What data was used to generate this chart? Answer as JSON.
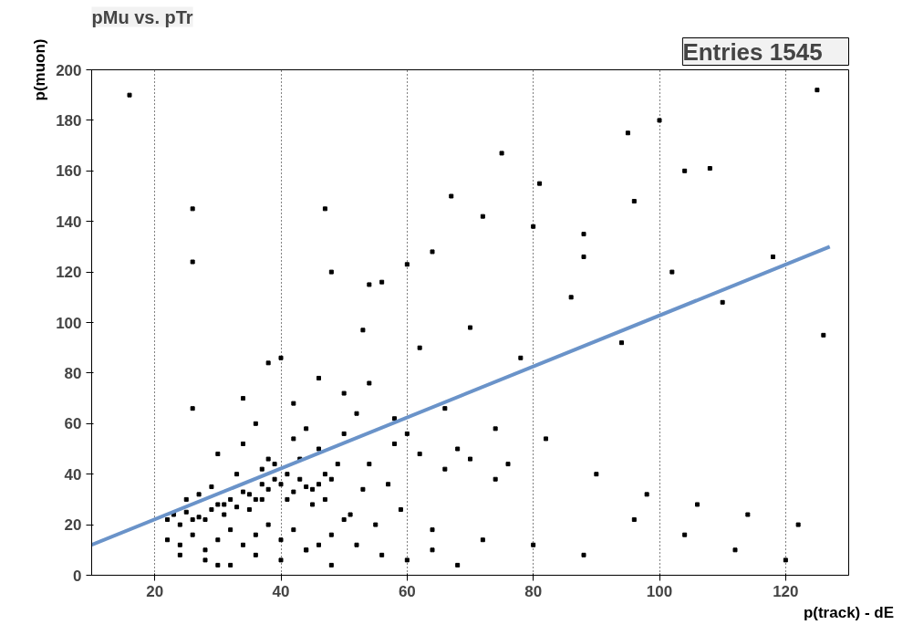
{
  "chart_data": {
    "type": "scatter",
    "title": "pMu vs. pTr",
    "xlabel": "p(track) - dE",
    "ylabel": "p(muon)",
    "annotations": [
      "Entries     1545"
    ],
    "xlim": [
      10,
      130
    ],
    "ylim": [
      0,
      200
    ],
    "xticks": [
      20,
      40,
      60,
      80,
      100,
      120
    ],
    "yticks": [
      0,
      20,
      40,
      60,
      80,
      100,
      120,
      140,
      160,
      180,
      200
    ],
    "grid": "x",
    "series": [
      {
        "color": "#000000",
        "marker": "square",
        "x": [
          22,
          23,
          24,
          25,
          26,
          27,
          28,
          29,
          30,
          31,
          32,
          33,
          34,
          35,
          36,
          37,
          38,
          39,
          40,
          41,
          42,
          43,
          44,
          45,
          46,
          47,
          48,
          22,
          24,
          26,
          28,
          30,
          32,
          34,
          36,
          38,
          40,
          42,
          44,
          46,
          48,
          50,
          25,
          27,
          29,
          31,
          33,
          35,
          37,
          39,
          41,
          43,
          45,
          47,
          49,
          51,
          53,
          55,
          57,
          59,
          24,
          28,
          32,
          36,
          40,
          44,
          48,
          52,
          56,
          60,
          64,
          68,
          30,
          34,
          38,
          42,
          46,
          50,
          54,
          58,
          62,
          66,
          70,
          74,
          36,
          44,
          52,
          60,
          68,
          76,
          26,
          34,
          42,
          50,
          58,
          66,
          74,
          82,
          90,
          98,
          106,
          114,
          122,
          64,
          72,
          80,
          88,
          96,
          104,
          112,
          120,
          30,
          38,
          46,
          54,
          62,
          70,
          78,
          86,
          94,
          102,
          110,
          118,
          126,
          40,
          48,
          56,
          64,
          72,
          80,
          88,
          96,
          104,
          16,
          26,
          37,
          47,
          53,
          54,
          60,
          67,
          75,
          81,
          88,
          95,
          100,
          108,
          125,
          26
        ],
        "values": [
          22,
          24,
          20,
          25,
          22,
          23,
          22,
          26,
          28,
          24,
          30,
          27,
          33,
          32,
          30,
          36,
          34,
          38,
          36,
          40,
          33,
          38,
          35,
          34,
          36,
          30,
          38,
          14,
          12,
          16,
          10,
          14,
          18,
          12,
          16,
          20,
          14,
          18,
          10,
          12,
          16,
          22,
          30,
          32,
          35,
          28,
          40,
          26,
          42,
          44,
          30,
          46,
          28,
          40,
          44,
          24,
          34,
          20,
          36,
          26,
          8,
          6,
          4,
          8,
          6,
          10,
          4,
          12,
          8,
          6,
          10,
          4,
          48,
          52,
          46,
          54,
          50,
          56,
          44,
          52,
          48,
          42,
          46,
          38,
          60,
          58,
          64,
          56,
          50,
          44,
          66,
          70,
          68,
          72,
          62,
          66,
          58,
          54,
          40,
          32,
          28,
          24,
          20,
          18,
          14,
          12,
          8,
          22,
          16,
          10,
          6,
          4,
          84,
          78,
          76,
          90,
          98,
          86,
          110,
          92,
          120,
          108,
          126,
          95,
          86,
          120,
          116,
          128,
          142,
          138,
          126,
          148,
          160,
          190,
          124,
          30,
          145,
          97,
          115,
          123,
          150,
          167,
          155,
          135,
          175,
          180,
          161,
          192,
          145
        ]
      },
      {
        "type": "line",
        "marker": "none",
        "color": "#6a93c9",
        "x": [
          10,
          127
        ],
        "values": [
          12,
          130
        ]
      }
    ]
  }
}
